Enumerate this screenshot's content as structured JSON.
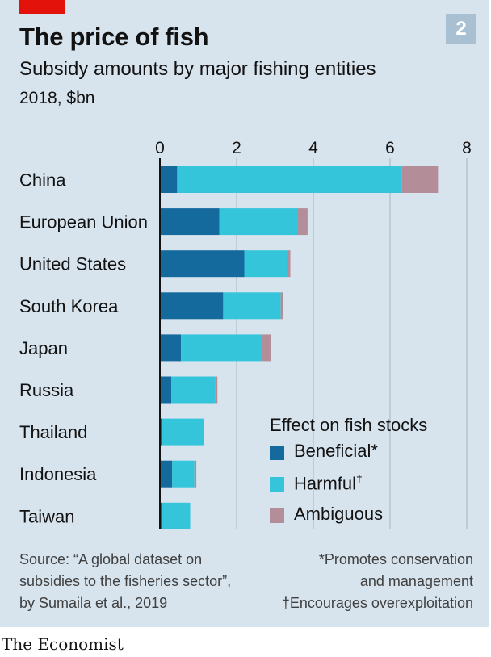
{
  "header": {
    "title": "The price of fish",
    "subtitle": "Subsidy amounts by major fishing entities",
    "unit": "2018, $bn",
    "badge": "2"
  },
  "legend": {
    "title": "Effect on fish stocks",
    "items": [
      {
        "label": "Beneficial",
        "mark": "*",
        "color": "#156a9d"
      },
      {
        "label": "Harmful",
        "mark": "†",
        "color": "#35c5db"
      },
      {
        "label": "Ambiguous",
        "mark": "",
        "color": "#b38d97"
      }
    ]
  },
  "footer": {
    "source": [
      "Source: “A global dataset on",
      "subsidies to the fisheries sector”,",
      "by Sumaila et al., 2019"
    ],
    "notes": [
      "*Promotes conservation",
      "and management",
      "†Encourages overexploitation"
    ],
    "brand": "The Economist"
  },
  "colors": {
    "panel": "#d7e4ee",
    "accent_red": "#e3120b",
    "gridline": "#a9bccd",
    "axis": "#121212"
  },
  "chart_data": {
    "type": "bar",
    "orientation": "horizontal",
    "stacked": true,
    "title": "The price of fish",
    "subtitle": "Subsidy amounts by major fishing entities",
    "unit": "2018, $bn",
    "xlim": [
      0,
      8
    ],
    "xticks": [
      0,
      2,
      4,
      6,
      8
    ],
    "grid": true,
    "legend_position": "bottom-right",
    "categories": [
      "China",
      "European Union",
      "United States",
      "South Korea",
      "Japan",
      "Russia",
      "Thailand",
      "Indonesia",
      "Taiwan"
    ],
    "series": [
      {
        "name": "Beneficial",
        "color": "#156a9d",
        "values": [
          0.45,
          1.55,
          2.2,
          1.65,
          0.55,
          0.3,
          0.05,
          0.32,
          0.05
        ]
      },
      {
        "name": "Harmful",
        "color": "#35c5db",
        "values": [
          5.85,
          2.05,
          1.12,
          1.5,
          2.12,
          1.15,
          1.1,
          0.58,
          0.74
        ]
      },
      {
        "name": "Ambiguous",
        "color": "#b38d97",
        "values": [
          0.95,
          0.25,
          0.08,
          0.05,
          0.23,
          0.05,
          0.0,
          0.05,
          0.0
        ]
      }
    ]
  }
}
